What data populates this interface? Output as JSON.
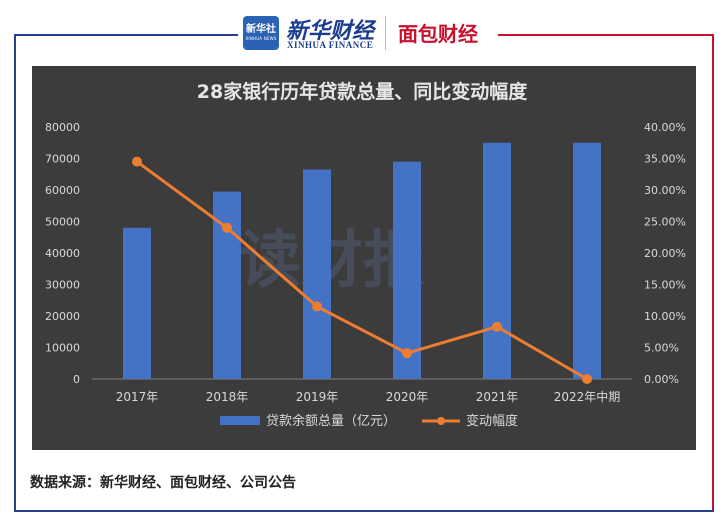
{
  "header": {
    "xinhua_logo_box_text": "新华社",
    "xinhua_logo_box_subtext": "XINHUA NEWS",
    "xinhua_name": "新华财经",
    "xinhua_english": "XINHUA FINANCE",
    "mianbao_name": "面包财经"
  },
  "source": "数据来源：新华财经、面包财经、公司公告",
  "colors": {
    "panel": "#3c3c3c",
    "bar": "#4472c4",
    "line": "#ed7d31",
    "text": "#d9d9d9",
    "grid": "#595959",
    "frame_left": "#23408e",
    "frame_right": "#c8102e"
  },
  "chart_data": {
    "type": "bar",
    "title": "28家银行历年贷款总量、同比变动幅度",
    "categories": [
      "2017年",
      "2018年",
      "2019年",
      "2020年",
      "2021年",
      "2022年中期"
    ],
    "series": [
      {
        "name": "贷款余额总量（亿元）",
        "type": "bar",
        "axis": "left",
        "values": [
          48000,
          59500,
          66500,
          69000,
          75000,
          75000
        ]
      },
      {
        "name": "变动幅度",
        "type": "line",
        "axis": "right",
        "values": [
          0.345,
          0.24,
          0.115,
          0.041,
          0.083,
          0.0
        ]
      }
    ],
    "y_left": {
      "range": [
        0,
        80000
      ],
      "ticks": [
        0,
        10000,
        20000,
        30000,
        40000,
        50000,
        60000,
        70000,
        80000
      ],
      "tick_labels": [
        "0",
        "10000",
        "20000",
        "30000",
        "40000",
        "50000",
        "60000",
        "70000",
        "80000"
      ]
    },
    "y_right": {
      "range": [
        0,
        0.4
      ],
      "tick_labels": [
        "0.00%",
        "5.00%",
        "10.00%",
        "15.00%",
        "20.00%",
        "25.00%",
        "30.00%",
        "35.00%",
        "40.00%"
      ]
    },
    "grid": false,
    "legend_position": "bottom",
    "watermark": "读财报"
  }
}
